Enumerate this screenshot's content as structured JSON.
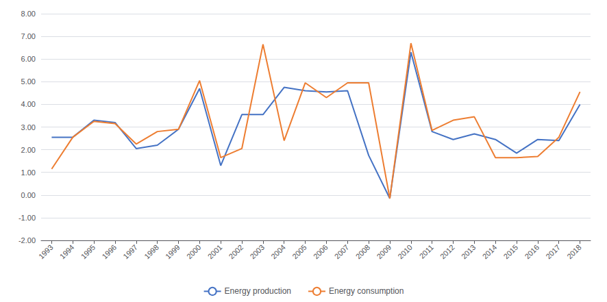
{
  "chart_data": {
    "type": "line",
    "x": [
      1993,
      1994,
      1995,
      1996,
      1997,
      1998,
      1999,
      2000,
      2001,
      2002,
      2003,
      2004,
      2005,
      2006,
      2007,
      2008,
      2009,
      2010,
      2011,
      2012,
      2013,
      2014,
      2015,
      2016,
      2017,
      2018
    ],
    "series": [
      {
        "name": "Energy production",
        "color": "#4472C4",
        "values": [
          2.55,
          2.55,
          3.3,
          3.2,
          2.05,
          2.2,
          2.9,
          4.7,
          1.3,
          3.55,
          3.55,
          4.75,
          4.6,
          4.55,
          4.6,
          1.75,
          -0.15,
          6.3,
          2.8,
          2.45,
          2.7,
          2.45,
          1.85,
          2.45,
          2.4,
          4.0
        ]
      },
      {
        "name": "Energy consumption",
        "color": "#ED7D31",
        "values": [
          1.15,
          2.55,
          3.25,
          3.15,
          2.25,
          2.8,
          2.9,
          5.05,
          1.65,
          2.05,
          6.65,
          2.4,
          4.95,
          4.3,
          4.95,
          4.95,
          -0.15,
          6.7,
          2.85,
          3.3,
          3.45,
          1.65,
          1.65,
          1.7,
          2.55,
          4.55
        ]
      }
    ],
    "xlim": [
      1992.5,
      2018.5
    ],
    "xticks": [
      1993,
      1994,
      1995,
      1996,
      1997,
      1998,
      1999,
      2000,
      2001,
      2002,
      2003,
      2004,
      2005,
      2006,
      2007,
      2008,
      2009,
      2010,
      2011,
      2012,
      2013,
      2014,
      2015,
      2016,
      2017,
      2018
    ],
    "ylim": [
      -2.0,
      8.0
    ],
    "yticks": [
      {
        "value": -2.0,
        "label": "-2.00"
      },
      {
        "value": -1.0,
        "label": "-1.00"
      },
      {
        "value": 0.0,
        "label": "0.00"
      },
      {
        "value": 1.0,
        "label": "1.00"
      },
      {
        "value": 2.0,
        "label": "2.00"
      },
      {
        "value": 3.0,
        "label": "3.00"
      },
      {
        "value": 4.0,
        "label": "4.00"
      },
      {
        "value": 5.0,
        "label": "5.00"
      },
      {
        "value": 6.0,
        "label": "6.00"
      },
      {
        "value": 7.0,
        "label": "7.00"
      },
      {
        "value": 8.0,
        "label": "8.00"
      }
    ],
    "grid": true,
    "legend": "lower center"
  }
}
